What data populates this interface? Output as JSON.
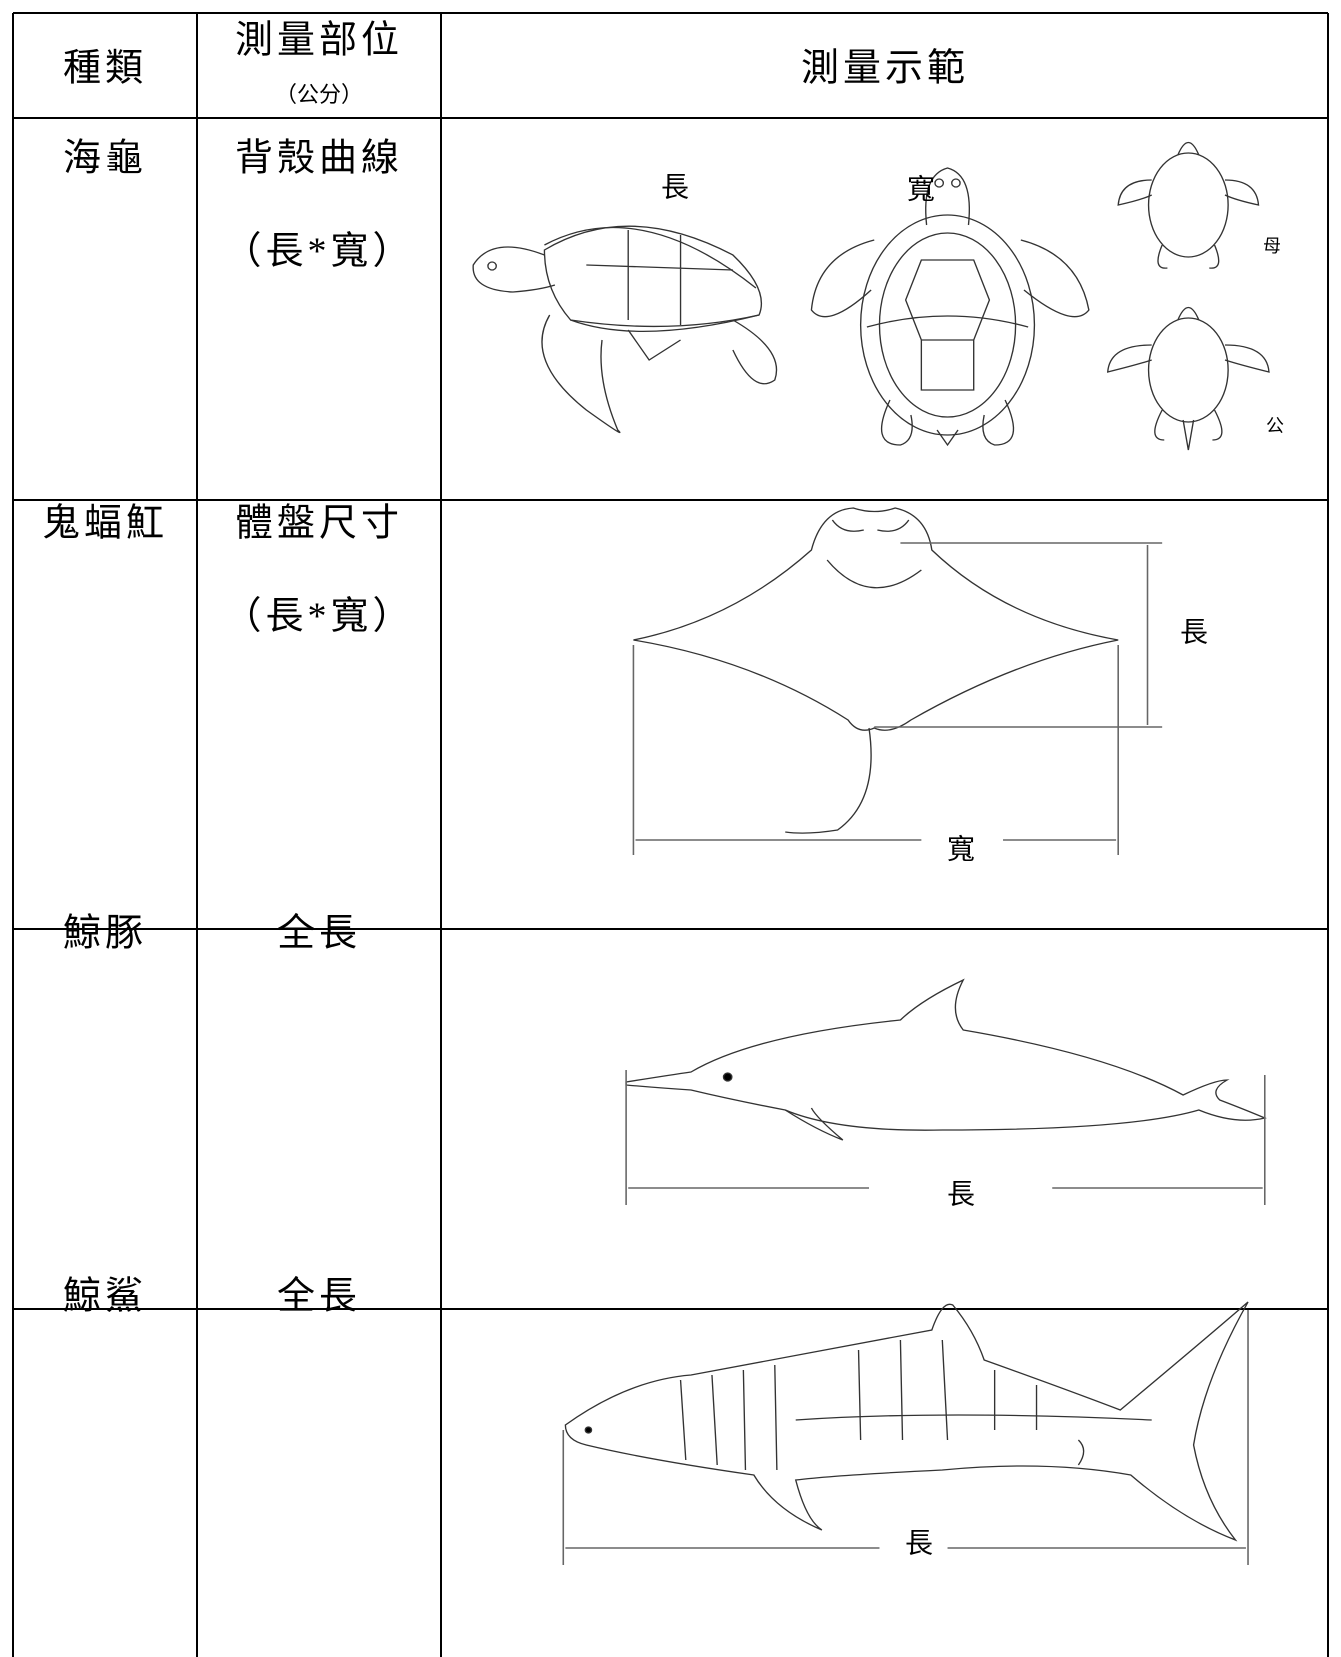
{
  "header": {
    "species": "種類",
    "part": "測量部位",
    "unit": "（公分）",
    "demo": "測量示範"
  },
  "rows": [
    {
      "species": "海龜",
      "part": "背殼曲線",
      "note": "（長*寬）",
      "labels": {
        "length": "長",
        "width": "寬",
        "female": "母",
        "male": "公"
      }
    },
    {
      "species": "鬼蝠魟",
      "part": "體盤尺寸",
      "note": "（長*寬）",
      "labels": {
        "length": "長",
        "width": "寬"
      }
    },
    {
      "species": "鯨豚",
      "part": "全長",
      "labels": {
        "length": "長"
      }
    },
    {
      "species": "鯨鯊",
      "part": "全長",
      "labels": {
        "length": "長"
      }
    }
  ]
}
